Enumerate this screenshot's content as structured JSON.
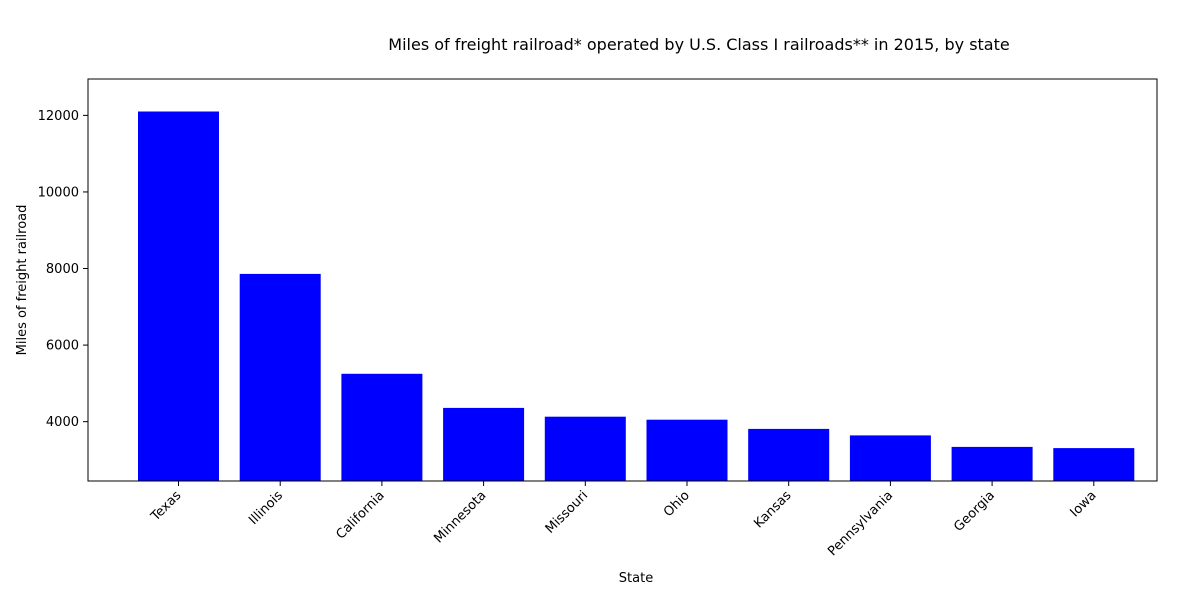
{
  "chart_data": {
    "type": "bar",
    "title": "Miles of freight railroad* operated by U.S. Class I railroads** in 2015, by state",
    "xlabel": "State",
    "ylabel": "Miles of freight railroad",
    "categories": [
      "Texas",
      "Illinois",
      "California",
      "Minnesota",
      "Missouri",
      "Ohio",
      "Kansas",
      "Pennsylvania",
      "Georgia",
      "Iowa"
    ],
    "values": [
      12100,
      7860,
      5250,
      4360,
      4130,
      4050,
      3810,
      3640,
      3340,
      3310
    ],
    "ylim": [
      2450,
      12950
    ],
    "yticks": [
      4000,
      6000,
      8000,
      10000,
      12000
    ],
    "bar_color": "#0000ff",
    "grid": false,
    "legend": "none"
  }
}
